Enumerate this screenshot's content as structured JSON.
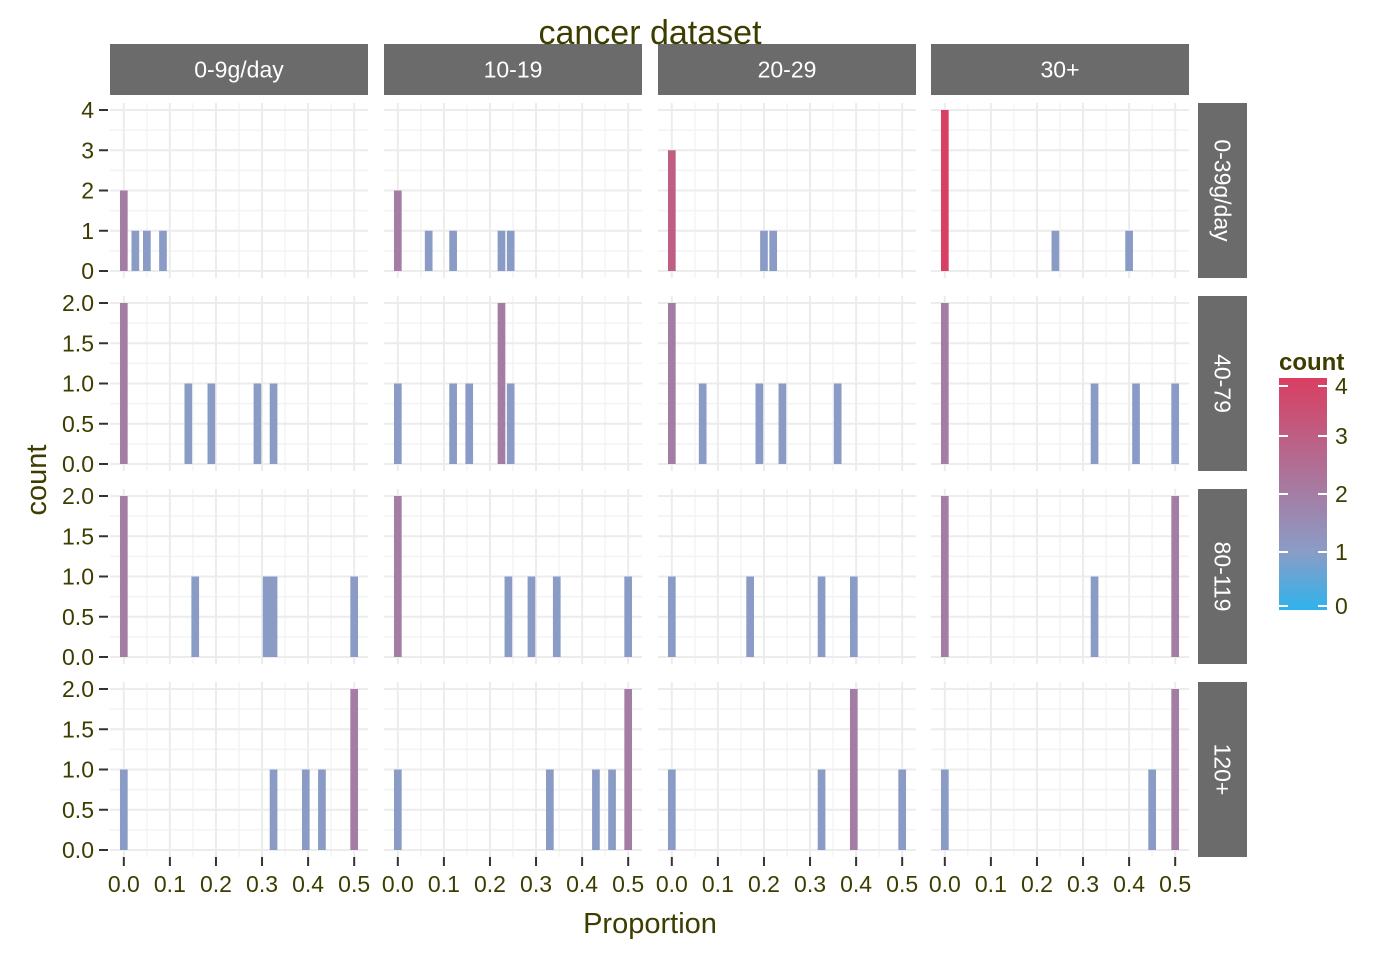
{
  "chart_data": {
    "type": "bar",
    "subtype": "faceted-histogram",
    "title": "cancer dataset",
    "xlabel": "Proportion",
    "ylabel": "count",
    "x_ticks": [
      0.0,
      0.1,
      0.2,
      0.3,
      0.4,
      0.5
    ],
    "x_tick_labels": [
      "0.0",
      "0.1",
      "0.2",
      "0.3",
      "0.4",
      "0.5"
    ],
    "xlim": [
      -0.03,
      0.53
    ],
    "bin_width": 0.0167,
    "column_strips": [
      "0-9g/day",
      "10-19",
      "20-29",
      "30+"
    ],
    "row_strips": [
      "0-39g/day",
      "40-79",
      "80-119",
      "120+"
    ],
    "rows": [
      {
        "ylim": [
          0,
          4
        ],
        "y_ticks": [
          0,
          1,
          2,
          3,
          4
        ],
        "y_tick_labels": [
          "0",
          "1",
          "2",
          "3",
          "4"
        ],
        "panels": [
          [
            [
              0.0,
              2
            ],
            [
              0.025,
              1
            ],
            [
              0.05,
              1
            ],
            [
              0.085,
              1
            ]
          ],
          [
            [
              0.0,
              2
            ],
            [
              0.067,
              1
            ],
            [
              0.12,
              1
            ],
            [
              0.225,
              1
            ],
            [
              0.245,
              1
            ]
          ],
          [
            [
              0.0,
              3
            ],
            [
              0.2,
              1
            ],
            [
              0.22,
              1
            ]
          ],
          [
            [
              0.0,
              4
            ],
            [
              0.24,
              1
            ],
            [
              0.4,
              1
            ]
          ]
        ]
      },
      {
        "ylim": [
          0,
          2
        ],
        "y_ticks": [
          0,
          0.5,
          1,
          1.5,
          2
        ],
        "y_tick_labels": [
          "0.0",
          "0.5",
          "1.0",
          "1.5",
          "2.0"
        ],
        "panels": [
          [
            [
              0.0,
              2
            ],
            [
              0.14,
              1
            ],
            [
              0.19,
              1
            ],
            [
              0.29,
              1
            ],
            [
              0.325,
              1
            ]
          ],
          [
            [
              0.0,
              1
            ],
            [
              0.12,
              1
            ],
            [
              0.155,
              1
            ],
            [
              0.225,
              2
            ],
            [
              0.245,
              1
            ]
          ],
          [
            [
              0.0,
              2
            ],
            [
              0.067,
              1
            ],
            [
              0.19,
              1
            ],
            [
              0.24,
              1
            ],
            [
              0.36,
              1
            ]
          ],
          [
            [
              0.0,
              2
            ],
            [
              0.325,
              1
            ],
            [
              0.415,
              1
            ],
            [
              0.5,
              1
            ]
          ]
        ]
      },
      {
        "ylim": [
          0,
          2
        ],
        "y_ticks": [
          0,
          0.5,
          1,
          1.5,
          2
        ],
        "y_tick_labels": [
          "0.0",
          "0.5",
          "1.0",
          "1.5",
          "2.0"
        ],
        "panels": [
          [
            [
              0.0,
              2
            ],
            [
              0.155,
              1
            ],
            [
              0.31,
              1
            ],
            [
              0.325,
              1
            ],
            [
              0.5,
              1
            ]
          ],
          [
            [
              0.0,
              2
            ],
            [
              0.24,
              1
            ],
            [
              0.29,
              1
            ],
            [
              0.345,
              1
            ],
            [
              0.5,
              1
            ]
          ],
          [
            [
              0.0,
              1
            ],
            [
              0.17,
              1
            ],
            [
              0.325,
              1
            ],
            [
              0.395,
              1
            ]
          ],
          [
            [
              0.0,
              2
            ],
            [
              0.325,
              1
            ],
            [
              0.5,
              2
            ]
          ]
        ]
      },
      {
        "ylim": [
          0,
          2
        ],
        "y_ticks": [
          0,
          0.5,
          1,
          1.5,
          2
        ],
        "y_tick_labels": [
          "0.0",
          "0.5",
          "1.0",
          "1.5",
          "2.0"
        ],
        "panels": [
          [
            [
              0.0,
              1
            ],
            [
              0.325,
              1
            ],
            [
              0.395,
              1
            ],
            [
              0.43,
              1
            ],
            [
              0.5,
              2
            ]
          ],
          [
            [
              0.0,
              1
            ],
            [
              0.33,
              1
            ],
            [
              0.43,
              1
            ],
            [
              0.465,
              1
            ],
            [
              0.5,
              2
            ]
          ],
          [
            [
              0.0,
              1
            ],
            [
              0.325,
              1
            ],
            [
              0.395,
              2
            ],
            [
              0.5,
              1
            ]
          ],
          [
            [
              0.0,
              1
            ],
            [
              0.45,
              1
            ],
            [
              0.5,
              2
            ]
          ]
        ]
      }
    ],
    "legend": {
      "title": "count",
      "type": "gradient",
      "range": [
        0,
        4
      ],
      "ticks": [
        "0",
        "1",
        "2",
        "3",
        "4"
      ],
      "colors": {
        "low": "#2fb3ec",
        "mid": "#8a9cc6",
        "high": "#d93f62"
      },
      "placement": "right"
    },
    "grid": true
  },
  "colors": {
    "strip_background": "#6b6b6b",
    "text": "#3d3d00"
  }
}
